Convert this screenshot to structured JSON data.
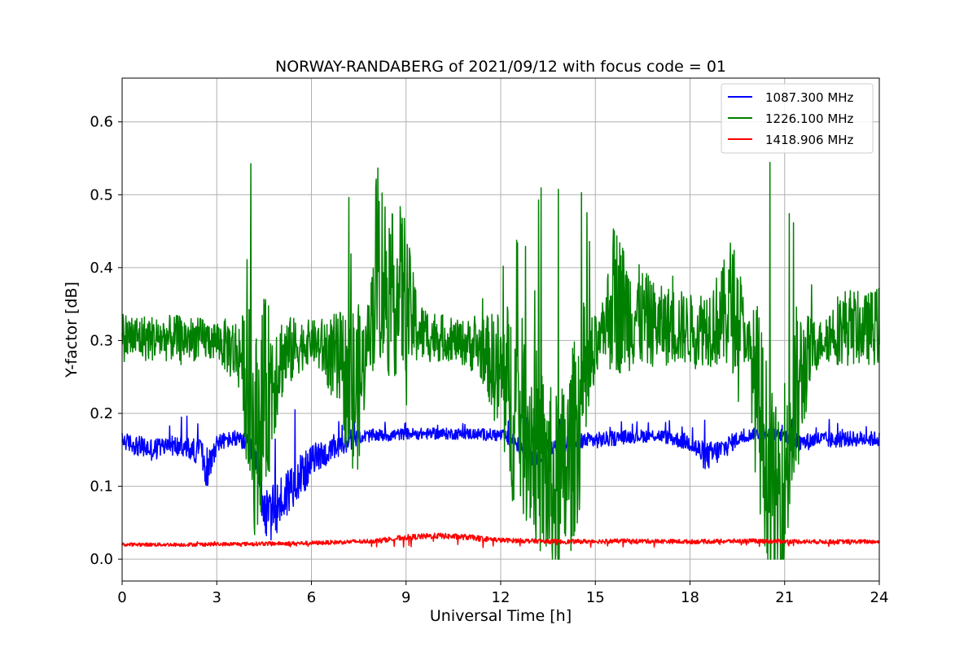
{
  "chart_data": {
    "type": "line",
    "title": "NORWAY-RANDABERG of 2021/09/12 with focus code = 01",
    "xlabel": "Universal Time [h]",
    "ylabel": "Y-factor [dB]",
    "xlim": [
      0,
      24
    ],
    "ylim": [
      -0.03,
      0.66
    ],
    "xticks": [
      0,
      3,
      6,
      9,
      12,
      15,
      18,
      21,
      24
    ],
    "xtick_labels": [
      "0",
      "3",
      "6",
      "9",
      "12",
      "15",
      "18",
      "21",
      "24"
    ],
    "yticks": [
      0.0,
      0.1,
      0.2,
      0.3,
      0.4,
      0.5,
      0.6
    ],
    "ytick_labels": [
      "0.0",
      "0.1",
      "0.2",
      "0.3",
      "0.4",
      "0.5",
      "0.6"
    ],
    "grid": true,
    "legend_position": "top-right",
    "series": [
      {
        "name": "1087.300 MHz",
        "color": "#0000ff",
        "baseline": 0.173,
        "x": [
          0,
          0.5,
          1,
          1.5,
          2,
          2.5,
          2.7,
          3,
          3.5,
          4,
          4.3,
          4.6,
          4.9,
          5.2,
          5.5,
          5.8,
          6.1,
          6.5,
          7,
          7.5,
          8,
          8.5,
          9,
          10,
          11,
          12,
          12.5,
          13,
          13.5,
          14,
          14.5,
          15,
          15.5,
          16,
          17,
          18,
          18.5,
          19,
          19.5,
          20,
          20.5,
          21,
          21.5,
          22,
          22.5,
          23,
          24
        ],
        "values": [
          0.163,
          0.155,
          0.15,
          0.157,
          0.152,
          0.147,
          0.12,
          0.16,
          0.165,
          0.16,
          0.12,
          0.055,
          0.07,
          0.09,
          0.11,
          0.12,
          0.14,
          0.145,
          0.155,
          0.168,
          0.17,
          0.17,
          0.172,
          0.172,
          0.172,
          0.17,
          0.16,
          0.145,
          0.15,
          0.16,
          0.162,
          0.163,
          0.165,
          0.168,
          0.17,
          0.16,
          0.14,
          0.15,
          0.165,
          0.172,
          0.172,
          0.17,
          0.158,
          0.165,
          0.163,
          0.165,
          0.165
        ]
      },
      {
        "name": "1226.100 MHz",
        "color": "#008000",
        "baseline": 0.3,
        "x": [
          0,
          1,
          2,
          3,
          3.8,
          4.0,
          4.2,
          4.4,
          4.7,
          5,
          5.5,
          6,
          6.5,
          7,
          7.3,
          7.6,
          7.9,
          8.1,
          8.3,
          8.6,
          8.9,
          9.2,
          9.5,
          10,
          10.5,
          11,
          11.5,
          12,
          12.3,
          12.6,
          13,
          13.3,
          13.6,
          13.8,
          14.1,
          14.4,
          14.7,
          15,
          15.3,
          15.6,
          16,
          16.5,
          17,
          17.5,
          18,
          18.5,
          19,
          19.3,
          19.6,
          19.9,
          20.2,
          20.5,
          20.7,
          21,
          21.3,
          21.6,
          21.9,
          22.2,
          22.6,
          23,
          23.5,
          24
        ],
        "values": [
          0.305,
          0.303,
          0.303,
          0.3,
          0.28,
          0.22,
          0.17,
          0.2,
          0.24,
          0.275,
          0.29,
          0.3,
          0.285,
          0.26,
          0.22,
          0.25,
          0.33,
          0.42,
          0.38,
          0.36,
          0.37,
          0.33,
          0.31,
          0.305,
          0.3,
          0.295,
          0.285,
          0.25,
          0.22,
          0.2,
          0.17,
          0.13,
          0.1,
          0.09,
          0.12,
          0.18,
          0.24,
          0.28,
          0.32,
          0.36,
          0.34,
          0.33,
          0.32,
          0.32,
          0.315,
          0.32,
          0.33,
          0.35,
          0.33,
          0.28,
          0.2,
          0.12,
          0.07,
          0.12,
          0.2,
          0.26,
          0.29,
          0.3,
          0.315,
          0.32,
          0.315,
          0.32
        ]
      },
      {
        "name": "1418.906 MHz",
        "color": "#ff0000",
        "baseline": 0.02,
        "x": [
          0,
          2,
          4,
          6,
          8,
          9,
          10,
          11,
          12,
          14,
          16,
          18,
          20,
          22,
          24
        ],
        "values": [
          0.02,
          0.02,
          0.021,
          0.022,
          0.025,
          0.03,
          0.032,
          0.03,
          0.026,
          0.024,
          0.025,
          0.024,
          0.025,
          0.024,
          0.024
        ]
      }
    ]
  }
}
